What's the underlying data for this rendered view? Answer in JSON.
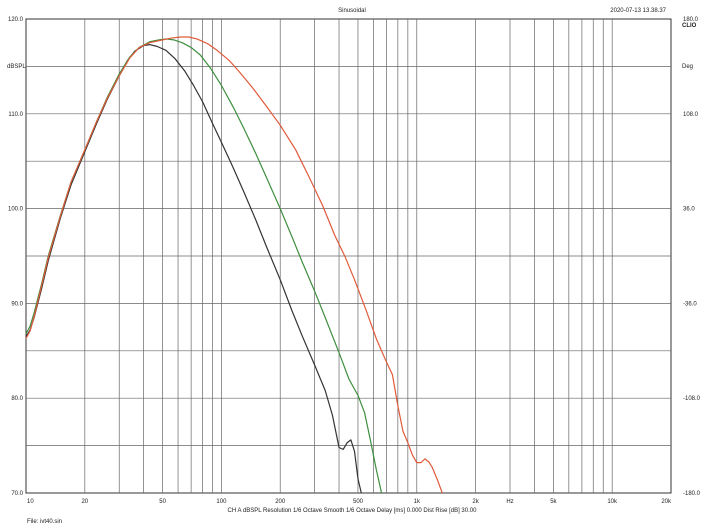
{
  "header": {
    "title": "Sinusoidal",
    "timestamp": "2020-07-13 13.38.37",
    "logo": "CLIO"
  },
  "footer": {
    "info": "CH A   dBSPL   Resolution 1/6 Octave   Smooth 1/6 Octave   Delay [ms] 0.000   Dist Rise [dB] 30.00",
    "file": "File: ivt40.sin"
  },
  "chart_data": {
    "type": "line",
    "xscale": "log",
    "xlim": [
      10,
      20000
    ],
    "ylim": [
      70,
      120
    ],
    "ylabel": "dBSPL",
    "ylabel_right": "Deg",
    "xlabel": "Hz",
    "grid": true,
    "legend": "none",
    "x_ticks": [
      {
        "v": 10,
        "label": "10"
      },
      {
        "v": 20,
        "label": "20"
      },
      {
        "v": 50,
        "label": "50"
      },
      {
        "v": 100,
        "label": "100"
      },
      {
        "v": 200,
        "label": "200"
      },
      {
        "v": 500,
        "label": "500"
      },
      {
        "v": 1000,
        "label": "1k"
      },
      {
        "v": 2000,
        "label": "2k"
      },
      {
        "v": 3000,
        "label": "Hz"
      },
      {
        "v": 5000,
        "label": "5k"
      },
      {
        "v": 10000,
        "label": "10k"
      },
      {
        "v": 20000,
        "label": "20k"
      }
    ],
    "y_ticks_left": [
      "120.0",
      "110.0",
      "100.0",
      "90.0",
      "80.0",
      "70.0"
    ],
    "y_ticks_right": [
      "180.0",
      "108.0",
      "36.0",
      "-36.0",
      "-108.0",
      "-180.0"
    ],
    "series": [
      {
        "color": "#333333",
        "points": [
          [
            10,
            86.5
          ],
          [
            10.5,
            87.2
          ],
          [
            11,
            88.5
          ],
          [
            12,
            91.5
          ],
          [
            13,
            94.5
          ],
          [
            15,
            99
          ],
          [
            17,
            102.5
          ],
          [
            20,
            106
          ],
          [
            23,
            109
          ],
          [
            26,
            111.5
          ],
          [
            30,
            114
          ],
          [
            33,
            115.6
          ],
          [
            36,
            116.6
          ],
          [
            40,
            117.2
          ],
          [
            43,
            117.3
          ],
          [
            47,
            117.1
          ],
          [
            52,
            116.7
          ],
          [
            58,
            115.8
          ],
          [
            65,
            114.5
          ],
          [
            72,
            113
          ],
          [
            80,
            111.3
          ],
          [
            90,
            109
          ],
          [
            100,
            107
          ],
          [
            115,
            104.3
          ],
          [
            130,
            101.8
          ],
          [
            150,
            98.8
          ],
          [
            170,
            96
          ],
          [
            200,
            92.5
          ],
          [
            230,
            89.2
          ],
          [
            260,
            86.5
          ],
          [
            300,
            83.5
          ],
          [
            340,
            80.8
          ],
          [
            370,
            78.2
          ],
          [
            400,
            74.8
          ],
          [
            420,
            74.6
          ],
          [
            440,
            75.3
          ],
          [
            460,
            75.6
          ],
          [
            480,
            74.4
          ],
          [
            500,
            71.5
          ],
          [
            520,
            70
          ]
        ]
      },
      {
        "color": "#3e8e3e",
        "points": [
          [
            10,
            86.8
          ],
          [
            10.5,
            87.6
          ],
          [
            11,
            89
          ],
          [
            12,
            92
          ],
          [
            13,
            95
          ],
          [
            15,
            99.3
          ],
          [
            17,
            102.8
          ],
          [
            20,
            106.2
          ],
          [
            23,
            109.2
          ],
          [
            26,
            111.7
          ],
          [
            30,
            114.2
          ],
          [
            34,
            116
          ],
          [
            38,
            117
          ],
          [
            43,
            117.6
          ],
          [
            48,
            117.8
          ],
          [
            52,
            117.9
          ],
          [
            57,
            117.8
          ],
          [
            63,
            117.5
          ],
          [
            70,
            117
          ],
          [
            78,
            116.2
          ],
          [
            88,
            114.8
          ],
          [
            100,
            113
          ],
          [
            115,
            110.7
          ],
          [
            130,
            108.5
          ],
          [
            150,
            105.8
          ],
          [
            170,
            103.3
          ],
          [
            200,
            100
          ],
          [
            230,
            97
          ],
          [
            260,
            94.3
          ],
          [
            300,
            91.3
          ],
          [
            340,
            88.5
          ],
          [
            400,
            84.8
          ],
          [
            450,
            82
          ],
          [
            500,
            80.3
          ],
          [
            540,
            78.5
          ],
          [
            580,
            75.5
          ],
          [
            620,
            72.5
          ],
          [
            660,
            70
          ]
        ]
      },
      {
        "color": "#e05a3a",
        "points": [
          [
            10,
            86.3
          ],
          [
            10.5,
            87.1
          ],
          [
            11,
            88.6
          ],
          [
            12,
            91.8
          ],
          [
            13,
            94.8
          ],
          [
            15,
            99.2
          ],
          [
            17,
            102.8
          ],
          [
            20,
            106.2
          ],
          [
            23,
            109.2
          ],
          [
            26,
            111.6
          ],
          [
            30,
            114
          ],
          [
            34,
            115.9
          ],
          [
            38,
            117
          ],
          [
            43,
            117.5
          ],
          [
            50,
            117.8
          ],
          [
            56,
            118
          ],
          [
            62,
            118.1
          ],
          [
            68,
            118.1
          ],
          [
            75,
            117.9
          ],
          [
            85,
            117.4
          ],
          [
            95,
            116.7
          ],
          [
            110,
            115.6
          ],
          [
            125,
            114.3
          ],
          [
            145,
            112.7
          ],
          [
            170,
            110.8
          ],
          [
            200,
            108.8
          ],
          [
            240,
            106.2
          ],
          [
            280,
            103.4
          ],
          [
            330,
            100.3
          ],
          [
            380,
            97.2
          ],
          [
            430,
            94.9
          ],
          [
            480,
            92.5
          ],
          [
            550,
            89.3
          ],
          [
            620,
            86.3
          ],
          [
            700,
            83.8
          ],
          [
            750,
            82.5
          ],
          [
            800,
            79.2
          ],
          [
            850,
            76.5
          ],
          [
            900,
            75.3
          ],
          [
            950,
            74
          ],
          [
            1000,
            73.2
          ],
          [
            1050,
            73.2
          ],
          [
            1100,
            73.6
          ],
          [
            1150,
            73.3
          ],
          [
            1200,
            72.7
          ],
          [
            1280,
            71.3
          ],
          [
            1350,
            70
          ]
        ]
      }
    ]
  }
}
